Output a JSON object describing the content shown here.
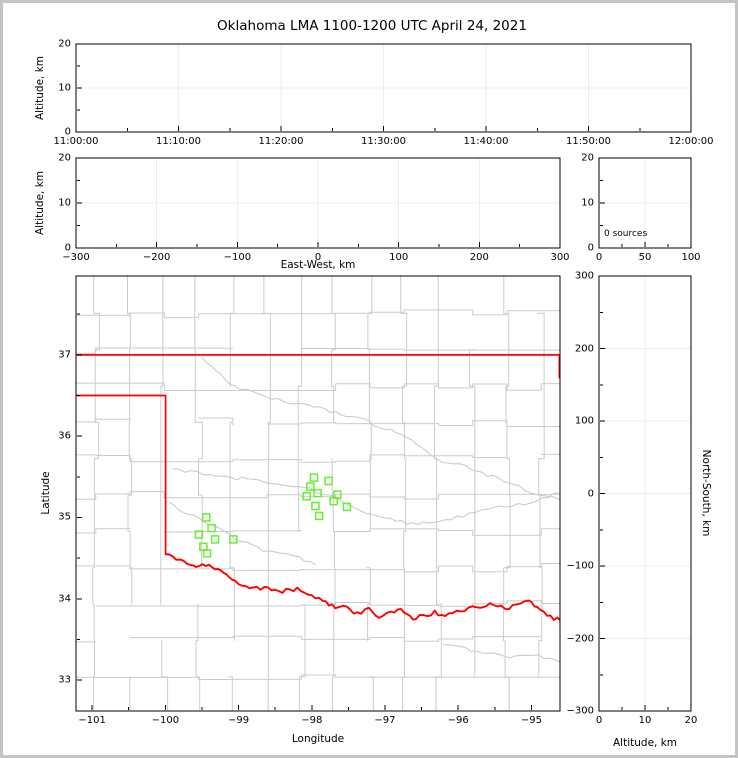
{
  "title": "Oklahoma LMA 1100-1200 UTC April 24, 2021",
  "colors": {
    "background": "#ffffff",
    "figure_border": "#c4c4c4",
    "frame": "#000000",
    "grid": "#ececec",
    "county_lines": "#cbcbcb",
    "state_border": "#ff0000",
    "source_marker": "#66ee33",
    "text": "#000000"
  },
  "chart_data": {
    "type": "scatter",
    "figure_title": "Oklahoma LMA 1100-1200 UTC April 24, 2021",
    "legend": "none",
    "grid": "faint major gridlines in all white panels",
    "panels": [
      {
        "name": "time-height",
        "description": "altitude vs time panel, empty (no sources plotted)",
        "ylabel": "Altitude, km",
        "ylim": [
          0,
          20
        ],
        "yticks": [
          0,
          10,
          20
        ],
        "xtick_labels": [
          "11:00:00",
          "11:10:00",
          "11:20:00",
          "11:30:00",
          "11:40:00",
          "11:50:00",
          "12:00:00"
        ],
        "xtick_seconds": [
          0,
          600,
          1200,
          1800,
          2400,
          3000,
          3600
        ],
        "points": []
      },
      {
        "name": "ew-height",
        "description": "altitude vs east-west distance panel, empty",
        "xlabel": "East-West, km",
        "ylabel": "Altitude, km",
        "xlim": [
          -300,
          300
        ],
        "xticks": [
          -300,
          -200,
          -100,
          0,
          100,
          200,
          300
        ],
        "ylim": [
          0,
          20
        ],
        "yticks": [
          0,
          10,
          20
        ],
        "points": []
      },
      {
        "name": "altitude-histogram",
        "description": "source-count vs altitude panel, empty",
        "annotation": "0 sources",
        "xlim": [
          0,
          100
        ],
        "xticks": [
          0,
          50,
          100
        ],
        "ylim": [
          0,
          20
        ],
        "yticks": [
          0,
          10,
          20
        ],
        "points": []
      },
      {
        "name": "plan-map",
        "description": "plan-view map of Oklahoma with county lines (gray), state borders and Red River (red), and LMA source locations (green squares)",
        "xlabel": "Longitude",
        "ylabel": "Latitude",
        "xlim": [
          -101.22,
          -94.61
        ],
        "xticks": [
          -101,
          -100,
          -99,
          -98,
          -97,
          -96,
          -95
        ],
        "ylim": [
          32.62,
          37.97
        ],
        "yticks": [
          33,
          34,
          35,
          36,
          37
        ],
        "sources_lon_lat": [
          [
            -97.97,
            35.49
          ],
          [
            -97.77,
            35.45
          ],
          [
            -98.02,
            35.38
          ],
          [
            -97.92,
            35.3
          ],
          [
            -98.07,
            35.26
          ],
          [
            -97.65,
            35.28
          ],
          [
            -97.7,
            35.2
          ],
          [
            -97.95,
            35.14
          ],
          [
            -97.52,
            35.13
          ],
          [
            -97.9,
            35.02
          ],
          [
            -99.44,
            35.0
          ],
          [
            -99.37,
            34.87
          ],
          [
            -99.54,
            34.79
          ],
          [
            -99.32,
            34.73
          ],
          [
            -99.07,
            34.73
          ],
          [
            -99.48,
            34.64
          ],
          [
            -99.43,
            34.56
          ]
        ]
      },
      {
        "name": "ns-altitude",
        "description": "north-south distance vs altitude panel, empty",
        "xlabel": "Altitude, km",
        "ylabel": "North-South, km",
        "xlim": [
          0,
          20
        ],
        "xticks": [
          0,
          10,
          20
        ],
        "ylim": [
          -300,
          300
        ],
        "yticks": [
          -300,
          -200,
          -100,
          0,
          100,
          200,
          300
        ],
        "points": []
      }
    ]
  }
}
